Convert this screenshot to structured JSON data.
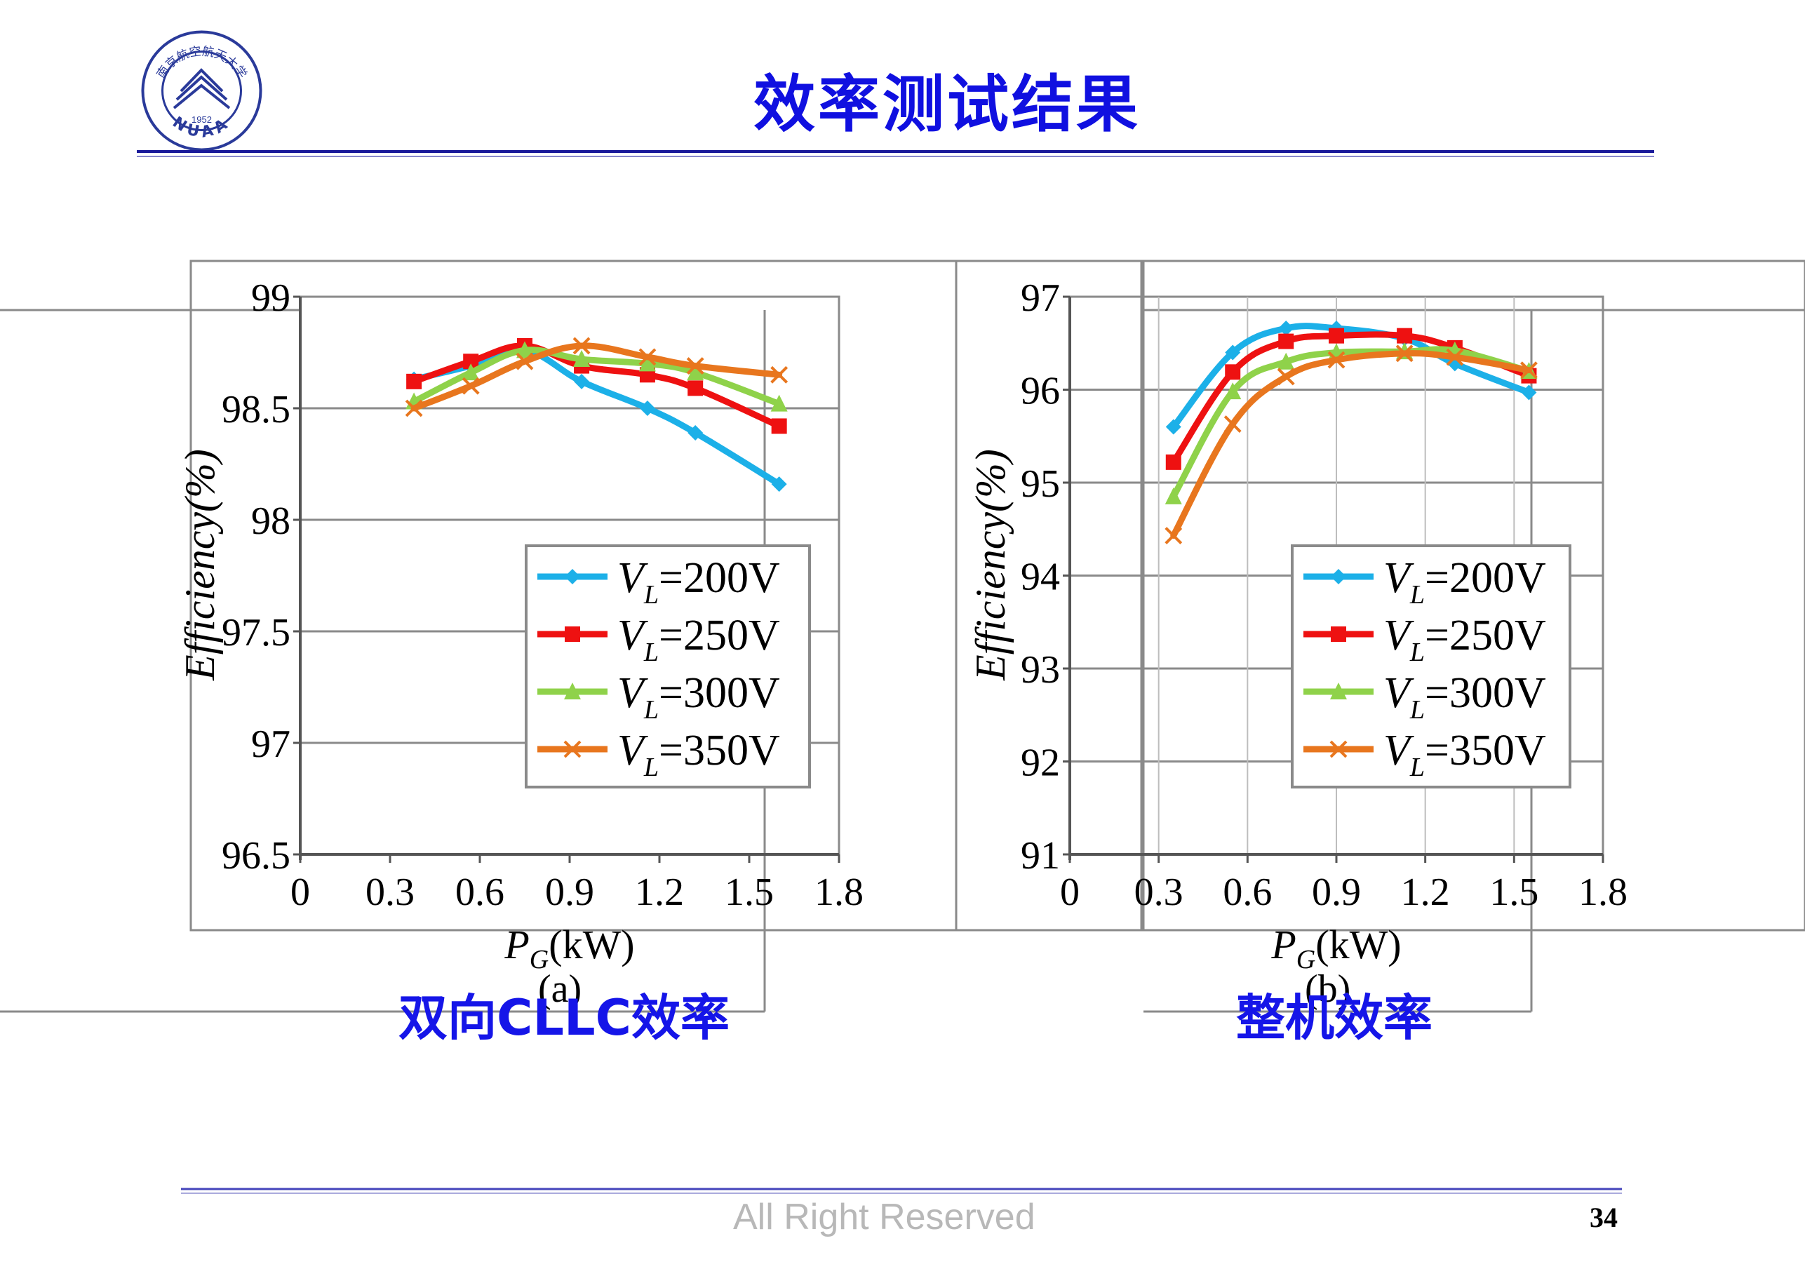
{
  "slide": {
    "title": "效率测试结果",
    "footer": "All Right Reserved",
    "page_number": "34",
    "logo": {
      "text_top": "南京航空航天大学",
      "text_bottom": "NUAA",
      "year": "1952"
    },
    "colors": {
      "title": "#1010e0",
      "rule": "#3333aa",
      "caption": "#1515e8"
    }
  },
  "captions": [
    {
      "text": "双向CLLC效率"
    },
    {
      "text": "整机效率"
    }
  ],
  "chart_data": [
    {
      "type": "line",
      "subfigure_label": "(a)",
      "xlabel": {
        "var": "P",
        "sub": "G",
        "unit": "(kW)"
      },
      "ylabel": "Efficiency(%)",
      "xlim": [
        0,
        1.8
      ],
      "ylim": [
        96.5,
        99
      ],
      "xticks": [
        "0",
        "0.3",
        "0.6",
        "0.9",
        "1.2",
        "1.5",
        "1.8"
      ],
      "yticks": [
        "96.5",
        "97",
        "97.5",
        "98",
        "98.5",
        "99"
      ],
      "grid": "horizontal",
      "legend_position": "lower-right",
      "series": [
        {
          "name": "=200V",
          "var": "V",
          "sub": "L",
          "color": "#1cb0e8",
          "marker": "diamond",
          "x": [
            0.38,
            0.57,
            0.75,
            0.94,
            1.16,
            1.32,
            1.6
          ],
          "y": [
            98.63,
            98.69,
            98.76,
            98.62,
            98.5,
            98.39,
            98.16
          ]
        },
        {
          "name": "=250V",
          "var": "V",
          "sub": "L",
          "color": "#ee1111",
          "marker": "square",
          "x": [
            0.38,
            0.57,
            0.75,
            0.94,
            1.16,
            1.32,
            1.6
          ],
          "y": [
            98.62,
            98.71,
            98.78,
            98.69,
            98.65,
            98.59,
            98.42
          ]
        },
        {
          "name": "=300V",
          "var": "V",
          "sub": "L",
          "color": "#8fd24a",
          "marker": "triangle",
          "x": [
            0.38,
            0.57,
            0.75,
            0.94,
            1.16,
            1.32,
            1.6
          ],
          "y": [
            98.53,
            98.66,
            98.76,
            98.72,
            98.7,
            98.66,
            98.52
          ]
        },
        {
          "name": "=350V",
          "var": "V",
          "sub": "L",
          "color": "#e8761e",
          "marker": "x",
          "x": [
            0.38,
            0.57,
            0.75,
            0.94,
            1.16,
            1.32,
            1.6
          ],
          "y": [
            98.5,
            98.6,
            98.71,
            98.78,
            98.73,
            98.69,
            98.65
          ]
        }
      ]
    },
    {
      "type": "line",
      "subfigure_label": "(b)",
      "xlabel": {
        "var": "P",
        "sub": "G",
        "unit": "(kW)"
      },
      "ylabel": "Efficiency(%)",
      "xlim": [
        0,
        1.8
      ],
      "ylim": [
        91,
        97
      ],
      "xticks": [
        "0",
        "0.3",
        "0.6",
        "0.9",
        "1.2",
        "1.5",
        "1.8"
      ],
      "yticks": [
        "91",
        "92",
        "93",
        "94",
        "95",
        "96",
        "97"
      ],
      "grid": "both",
      "legend_position": "lower-right",
      "series": [
        {
          "name": "=200V",
          "var": "V",
          "sub": "L",
          "color": "#1cb0e8",
          "marker": "diamond",
          "x": [
            0.35,
            0.55,
            0.73,
            0.9,
            1.13,
            1.3,
            1.55
          ],
          "y": [
            95.6,
            96.4,
            96.66,
            96.66,
            96.55,
            96.28,
            95.97
          ]
        },
        {
          "name": "=250V",
          "var": "V",
          "sub": "L",
          "color": "#ee1111",
          "marker": "square",
          "x": [
            0.35,
            0.55,
            0.73,
            0.9,
            1.13,
            1.3,
            1.55
          ],
          "y": [
            95.22,
            96.19,
            96.52,
            96.58,
            96.58,
            96.45,
            96.15
          ]
        },
        {
          "name": "=300V",
          "var": "V",
          "sub": "L",
          "color": "#8fd24a",
          "marker": "triangle",
          "x": [
            0.35,
            0.55,
            0.73,
            0.9,
            1.13,
            1.3,
            1.55
          ],
          "y": [
            94.85,
            95.98,
            96.3,
            96.4,
            96.41,
            96.42,
            96.2
          ]
        },
        {
          "name": "=350V",
          "var": "V",
          "sub": "L",
          "color": "#e8761e",
          "marker": "x",
          "x": [
            0.35,
            0.55,
            0.73,
            0.9,
            1.13,
            1.3,
            1.55
          ],
          "y": [
            94.43,
            95.63,
            96.14,
            96.32,
            96.39,
            96.35,
            96.21
          ]
        }
      ]
    }
  ]
}
